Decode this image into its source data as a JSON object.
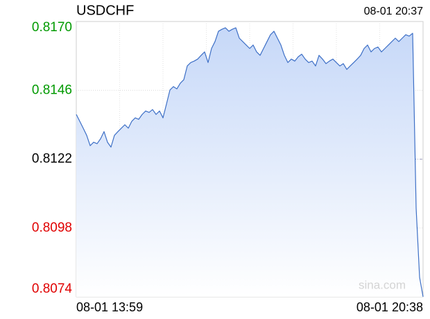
{
  "chart_data": {
    "type": "line",
    "title": "USDCHF",
    "timestamp": "08-01 20:37",
    "x_labels": [
      "08-01 13:59",
      "08-01 20:38"
    ],
    "watermark": "sina.com",
    "values": [
      0.81376,
      0.81352,
      0.81328,
      0.81303,
      0.81267,
      0.81279,
      0.81274,
      0.81291,
      0.81316,
      0.81279,
      0.81262,
      0.81303,
      0.81316,
      0.81328,
      0.8134,
      0.81328,
      0.81352,
      0.81364,
      0.81359,
      0.81376,
      0.81388,
      0.81383,
      0.81393,
      0.81376,
      0.81388,
      0.81364,
      0.81412,
      0.81461,
      0.81473,
      0.81465,
      0.81485,
      0.81497,
      0.81545,
      0.81557,
      0.81562,
      0.81569,
      0.81582,
      0.81594,
      0.81557,
      0.81606,
      0.8163,
      0.81666,
      0.81673,
      0.81678,
      0.81666,
      0.81673,
      0.81678,
      0.81642,
      0.8163,
      0.81618,
      0.81606,
      0.81618,
      0.81594,
      0.81582,
      0.81606,
      0.8163,
      0.81654,
      0.81666,
      0.81642,
      0.81618,
      0.81582,
      0.81557,
      0.81569,
      0.81562,
      0.81577,
      0.81586,
      0.81569,
      0.81557,
      0.81562,
      0.81545,
      0.81582,
      0.81569,
      0.81553,
      0.81562,
      0.81569,
      0.81557,
      0.81545,
      0.81553,
      0.81533,
      0.81545,
      0.81557,
      0.81569,
      0.81582,
      0.81606,
      0.81618,
      0.81594,
      0.81606,
      0.81611,
      0.81594,
      0.81606,
      0.81618,
      0.8163,
      0.81642,
      0.8163,
      0.81642,
      0.81654,
      0.81649,
      0.81659,
      0.8105,
      0.80808,
      0.8074
    ],
    "color": "#3d6fc6",
    "ylim": [
      0.8074,
      0.817
    ],
    "yticks": [
      0.8074,
      0.8098,
      0.8122,
      0.8146,
      {
        "value": 0.817,
        "label": "0.8170"
      }
    ],
    "reference_line": 0.8122,
    "up_color": "#009a00",
    "down_color": "#e00000",
    "flat_color": "#000000",
    "grid": true
  }
}
